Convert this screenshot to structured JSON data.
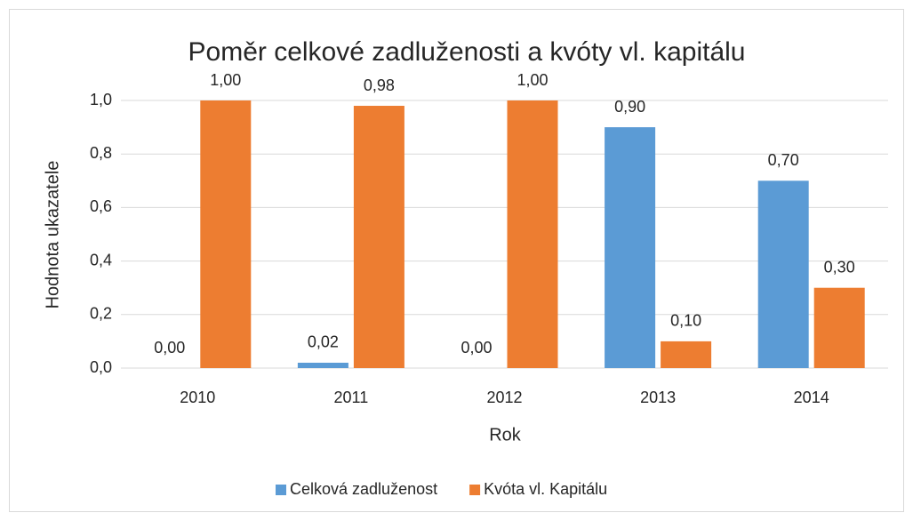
{
  "chart_data": {
    "type": "bar",
    "title": "Poměr celkové zadluženosti a kvóty vl. kapitálu",
    "x_label": "Rok",
    "y_label": "Hodnota ukazatele",
    "categories": [
      "2010",
      "2011",
      "2012",
      "2013",
      "2014"
    ],
    "series": [
      {
        "name": "Celková zadluženost",
        "color": "#5b9bd5",
        "values": [
          0,
          0.02,
          0,
          0.9,
          0.7
        ],
        "value_labels": [
          "0,00",
          "0,02",
          "0,00",
          "0,90",
          "0,70"
        ]
      },
      {
        "name": "Kvóta vl. Kapitálu",
        "color": "#ed7d31",
        "values": [
          1,
          0.98,
          1,
          0.1,
          0.3
        ],
        "value_labels": [
          "1,00",
          "0,98",
          "1,00",
          "0,10",
          "0,30"
        ]
      }
    ],
    "ylim": [
      0,
      1
    ],
    "yticks": [
      {
        "value": 0,
        "label": "0,0"
      },
      {
        "value": 0.2,
        "label": "0,2"
      },
      {
        "value": 0.4,
        "label": "0,4"
      },
      {
        "value": 0.6,
        "label": "0,6"
      },
      {
        "value": 0.8,
        "label": "0,8"
      },
      {
        "value": 1,
        "label": "1,0"
      }
    ],
    "grid": true,
    "legend": "bottom"
  }
}
